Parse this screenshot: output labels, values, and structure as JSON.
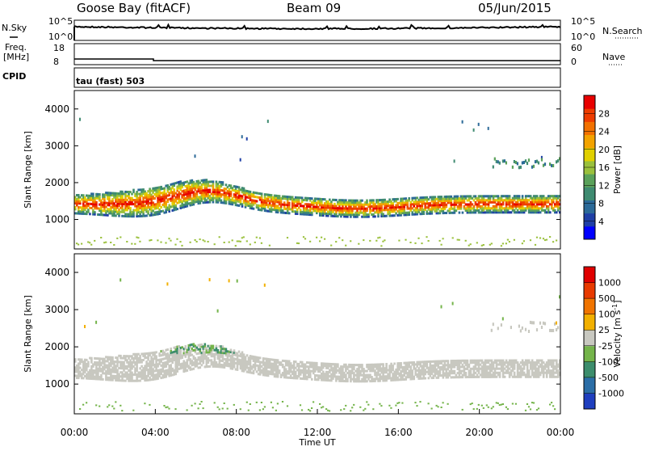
{
  "header": {
    "title": "Goose Bay (fitACF)",
    "beam": "Beam 09",
    "date": "05/Jun/2015"
  },
  "strip_panels": {
    "nsky": {
      "label": "N.Sky",
      "right_label": "N.Search",
      "left_ticks": [
        "10^5",
        "10^0"
      ],
      "right_ticks": [
        "10^5",
        "10^0"
      ]
    },
    "freq": {
      "label_top": "Freq.",
      "label_bottom": "[MHz]",
      "right_label": "Nave",
      "left_ticks": [
        "18",
        "8"
      ],
      "right_ticks": [
        "60",
        "0"
      ]
    },
    "cpid": {
      "label": "CPID",
      "value": "tau (fast) 503"
    }
  },
  "chart_data": [
    {
      "type": "heatmap",
      "name": "power",
      "ylabel": "Slant Range [km]",
      "xlabel": "",
      "ylim": [
        200,
        4500
      ],
      "xlim": [
        0,
        24
      ],
      "yticks": [
        "1000",
        "2000",
        "3000",
        "4000"
      ],
      "colorbar": {
        "label": "Power [dB]",
        "ticks": [
          "28",
          "24",
          "20",
          "16",
          "12",
          "8",
          "4"
        ],
        "colors": [
          "#0000ff",
          "#1f3fa6",
          "#2c6a98",
          "#3f8b71",
          "#5aa15a",
          "#9ac03c",
          "#e1d000",
          "#f3a300",
          "#f27100",
          "#ee3c00",
          "#e80000"
        ]
      }
    },
    {
      "type": "heatmap",
      "name": "velocity",
      "ylabel": "Slant Range [km]",
      "xlabel": "Time UT",
      "ylim": [
        200,
        4500
      ],
      "xlim": [
        0,
        24
      ],
      "yticks": [
        "1000",
        "2000",
        "3000",
        "4000"
      ],
      "xticks": [
        "00:00",
        "04:00",
        "08:00",
        "12:00",
        "16:00",
        "20:00",
        "00:00"
      ],
      "colorbar": {
        "label": "Velocity [m s",
        "label_sup": "-1",
        "label_end": "]",
        "ticks": [
          "1000",
          "500",
          "100",
          "25",
          "-25",
          "-100",
          "-500",
          "-1000"
        ],
        "colors": [
          "#1f3fbf",
          "#2b6ea7",
          "#3c8d6c",
          "#74b44a",
          "#c8c8c0",
          "#f2b000",
          "#f07400",
          "#e83a00",
          "#e00000"
        ]
      }
    }
  ]
}
